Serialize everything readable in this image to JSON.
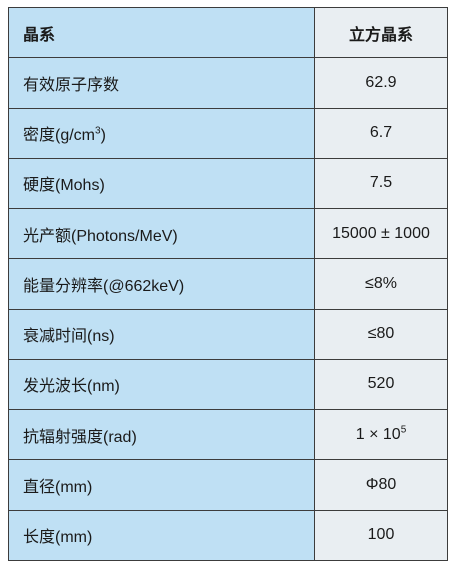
{
  "table": {
    "header": {
      "key": "晶系",
      "value": "立方晶系"
    },
    "rows": [
      {
        "key": "有效原子序数",
        "value": "62.9"
      },
      {
        "key_pre": "密度(g/cm",
        "key_sup": "3",
        "key_post": ")",
        "value": "6.7"
      },
      {
        "key": "硬度(Mohs)",
        "value": "7.5"
      },
      {
        "key": "光产额(Photons/MeV)",
        "value": "15000 ± 1000"
      },
      {
        "key": "能量分辨率(@662keV)",
        "value": "≤8%"
      },
      {
        "key": "衰减时间(ns)",
        "value": "≤80"
      },
      {
        "key": "发光波长(nm)",
        "value": "520"
      },
      {
        "key": "抗辐射强度(rad)",
        "value_pre": "1 × 10",
        "value_sup": "5"
      },
      {
        "key": "直径(mm)",
        "value": "Φ80"
      },
      {
        "key": "长度(mm)",
        "value": "100"
      }
    ]
  }
}
